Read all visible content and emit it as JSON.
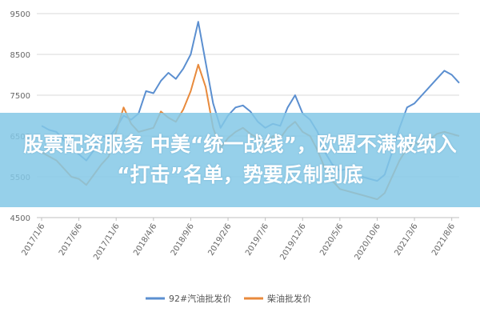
{
  "chart_data": {
    "type": "line",
    "title": "",
    "xlabel": "",
    "ylabel": "",
    "ylim": [
      4500,
      9500
    ],
    "y_ticks": [
      4500,
      5500,
      6500,
      7500,
      8500,
      9500
    ],
    "x_tick_labels": [
      "2017/1/6",
      "2017/6/6",
      "2017/11/6",
      "2018/4/6",
      "2018/9/6",
      "2019/2/6",
      "2019/7/6",
      "2019/12/6",
      "2020/5/6",
      "2020/10/6",
      "2021/3/6",
      "2021/8/6"
    ],
    "grid": "horizontal",
    "legend_position": "bottom",
    "series": [
      {
        "name": "92#汽油批发价",
        "color": "#5b8fd0",
        "points": [
          [
            "2017/1/6",
            6750
          ],
          [
            "2017/2/6",
            6650
          ],
          [
            "2017/3/6",
            6600
          ],
          [
            "2017/4/6",
            6400
          ],
          [
            "2017/5/6",
            6200
          ],
          [
            "2017/6/6",
            6050
          ],
          [
            "2017/7/6",
            5900
          ],
          [
            "2017/8/6",
            6150
          ],
          [
            "2017/9/6",
            6500
          ],
          [
            "2017/10/6",
            6450
          ],
          [
            "2017/11/6",
            6700
          ],
          [
            "2017/12/6",
            7000
          ],
          [
            "2018/1/6",
            6900
          ],
          [
            "2018/2/6",
            7050
          ],
          [
            "2018/3/6",
            7600
          ],
          [
            "2018/4/6",
            7550
          ],
          [
            "2018/5/6",
            7850
          ],
          [
            "2018/6/6",
            8050
          ],
          [
            "2018/7/6",
            7900
          ],
          [
            "2018/8/6",
            8150
          ],
          [
            "2018/9/6",
            8500
          ],
          [
            "2018/10/6",
            9300
          ],
          [
            "2018/11/6",
            8300
          ],
          [
            "2018/12/6",
            7300
          ],
          [
            "2019/1/6",
            6700
          ],
          [
            "2019/2/6",
            7000
          ],
          [
            "2019/3/6",
            7200
          ],
          [
            "2019/4/6",
            7250
          ],
          [
            "2019/5/6",
            7100
          ],
          [
            "2019/6/6",
            6850
          ],
          [
            "2019/7/6",
            6700
          ],
          [
            "2019/8/6",
            6800
          ],
          [
            "2019/9/6",
            6750
          ],
          [
            "2019/10/6",
            7200
          ],
          [
            "2019/11/6",
            7500
          ],
          [
            "2019/12/6",
            7050
          ],
          [
            "2020/1/6",
            6900
          ],
          [
            "2020/2/6",
            6600
          ],
          [
            "2020/3/6",
            6100
          ],
          [
            "2020/4/6",
            5800
          ],
          [
            "2020/5/6",
            5650
          ],
          [
            "2020/6/6",
            5700
          ],
          [
            "2020/7/6",
            5600
          ],
          [
            "2020/8/6",
            5500
          ],
          [
            "2020/9/6",
            5450
          ],
          [
            "2020/10/6",
            5400
          ],
          [
            "2020/11/6",
            5550
          ],
          [
            "2020/12/6",
            6100
          ],
          [
            "2021/1/6",
            6700
          ],
          [
            "2021/2/6",
            7200
          ],
          [
            "2021/3/6",
            7300
          ],
          [
            "2021/4/6",
            7500
          ],
          [
            "2021/5/6",
            7700
          ],
          [
            "2021/6/6",
            7900
          ],
          [
            "2021/7/6",
            8100
          ],
          [
            "2021/8/6",
            8000
          ],
          [
            "2021/9/6",
            7800
          ]
        ]
      },
      {
        "name": "柴油批发价",
        "color": "#e88a3c",
        "points": [
          [
            "2017/1/6",
            6100
          ],
          [
            "2017/2/6",
            6000
          ],
          [
            "2017/3/6",
            5900
          ],
          [
            "2017/4/6",
            5700
          ],
          [
            "2017/5/6",
            5500
          ],
          [
            "2017/6/6",
            5450
          ],
          [
            "2017/7/6",
            5300
          ],
          [
            "2017/8/6",
            5550
          ],
          [
            "2017/9/6",
            5800
          ],
          [
            "2017/10/6",
            6000
          ],
          [
            "2017/11/6",
            6600
          ],
          [
            "2017/12/6",
            7200
          ],
          [
            "2018/1/6",
            6800
          ],
          [
            "2018/2/6",
            6600
          ],
          [
            "2018/3/6",
            6650
          ],
          [
            "2018/4/6",
            6700
          ],
          [
            "2018/5/6",
            7100
          ],
          [
            "2018/6/6",
            6950
          ],
          [
            "2018/7/6",
            6850
          ],
          [
            "2018/8/6",
            7150
          ],
          [
            "2018/9/6",
            7600
          ],
          [
            "2018/10/6",
            8250
          ],
          [
            "2018/11/6",
            7700
          ],
          [
            "2018/12/6",
            6700
          ],
          [
            "2019/1/6",
            6200
          ],
          [
            "2019/2/6",
            6450
          ],
          [
            "2019/3/6",
            6600
          ],
          [
            "2019/4/6",
            6700
          ],
          [
            "2019/5/6",
            6550
          ],
          [
            "2019/6/6",
            6450
          ],
          [
            "2019/7/6",
            6300
          ],
          [
            "2019/8/6",
            6500
          ],
          [
            "2019/9/6",
            6450
          ],
          [
            "2019/10/6",
            6700
          ],
          [
            "2019/11/6",
            6850
          ],
          [
            "2019/12/6",
            6600
          ],
          [
            "2020/1/6",
            6500
          ],
          [
            "2020/2/6",
            6150
          ],
          [
            "2020/3/6",
            5700
          ],
          [
            "2020/4/6",
            5400
          ],
          [
            "2020/5/6",
            5200
          ],
          [
            "2020/6/6",
            5150
          ],
          [
            "2020/7/6",
            5100
          ],
          [
            "2020/8/6",
            5050
          ],
          [
            "2020/9/6",
            5000
          ],
          [
            "2020/10/6",
            4950
          ],
          [
            "2020/11/6",
            5100
          ],
          [
            "2020/12/6",
            5500
          ],
          [
            "2021/1/6",
            5900
          ],
          [
            "2021/2/6",
            6200
          ],
          [
            "2021/3/6",
            6350
          ],
          [
            "2021/4/6",
            6250
          ],
          [
            "2021/5/6",
            6400
          ],
          [
            "2021/6/6",
            6550
          ],
          [
            "2021/7/6",
            6600
          ],
          [
            "2021/8/6",
            6550
          ],
          [
            "2021/9/6",
            6500
          ]
        ]
      }
    ]
  },
  "overlay": {
    "line1": "股票配资服务 中美“统一战线”，欧盟不满被纳入",
    "line2": "“打击”名单，势要反制到底"
  },
  "colors": {
    "grid": "#d9d9d9",
    "axis": "#bfbfbf",
    "overlay_band": "#84c8e6"
  }
}
